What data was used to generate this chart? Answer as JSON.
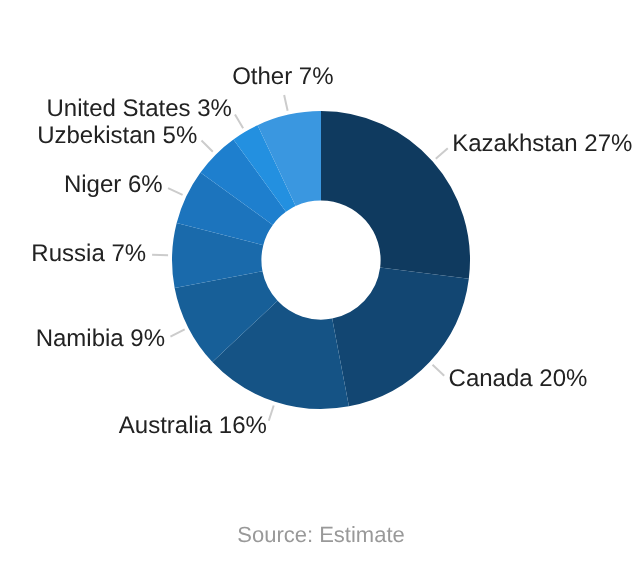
{
  "chart_data": {
    "type": "donut",
    "categories": [
      "Kazakhstan",
      "Canada",
      "Australia",
      "Namibia",
      "Russia",
      "Niger",
      "Uzbekistan",
      "United States",
      "Other"
    ],
    "values": [
      27,
      20,
      16,
      9,
      7,
      6,
      5,
      3,
      7
    ],
    "value_labels": [
      "27%",
      "20%",
      "16%",
      "9%",
      "7%",
      "6%",
      "5%",
      "3%",
      "7%"
    ],
    "colors": [
      "#0f3a5f",
      "#124672",
      "#155385",
      "#175f98",
      "#1a6aab",
      "#1c74bd",
      "#1e7fce",
      "#2390e0",
      "#3a97e0"
    ],
    "legend": false,
    "annotations": [
      "Source: Estimate"
    ]
  }
}
